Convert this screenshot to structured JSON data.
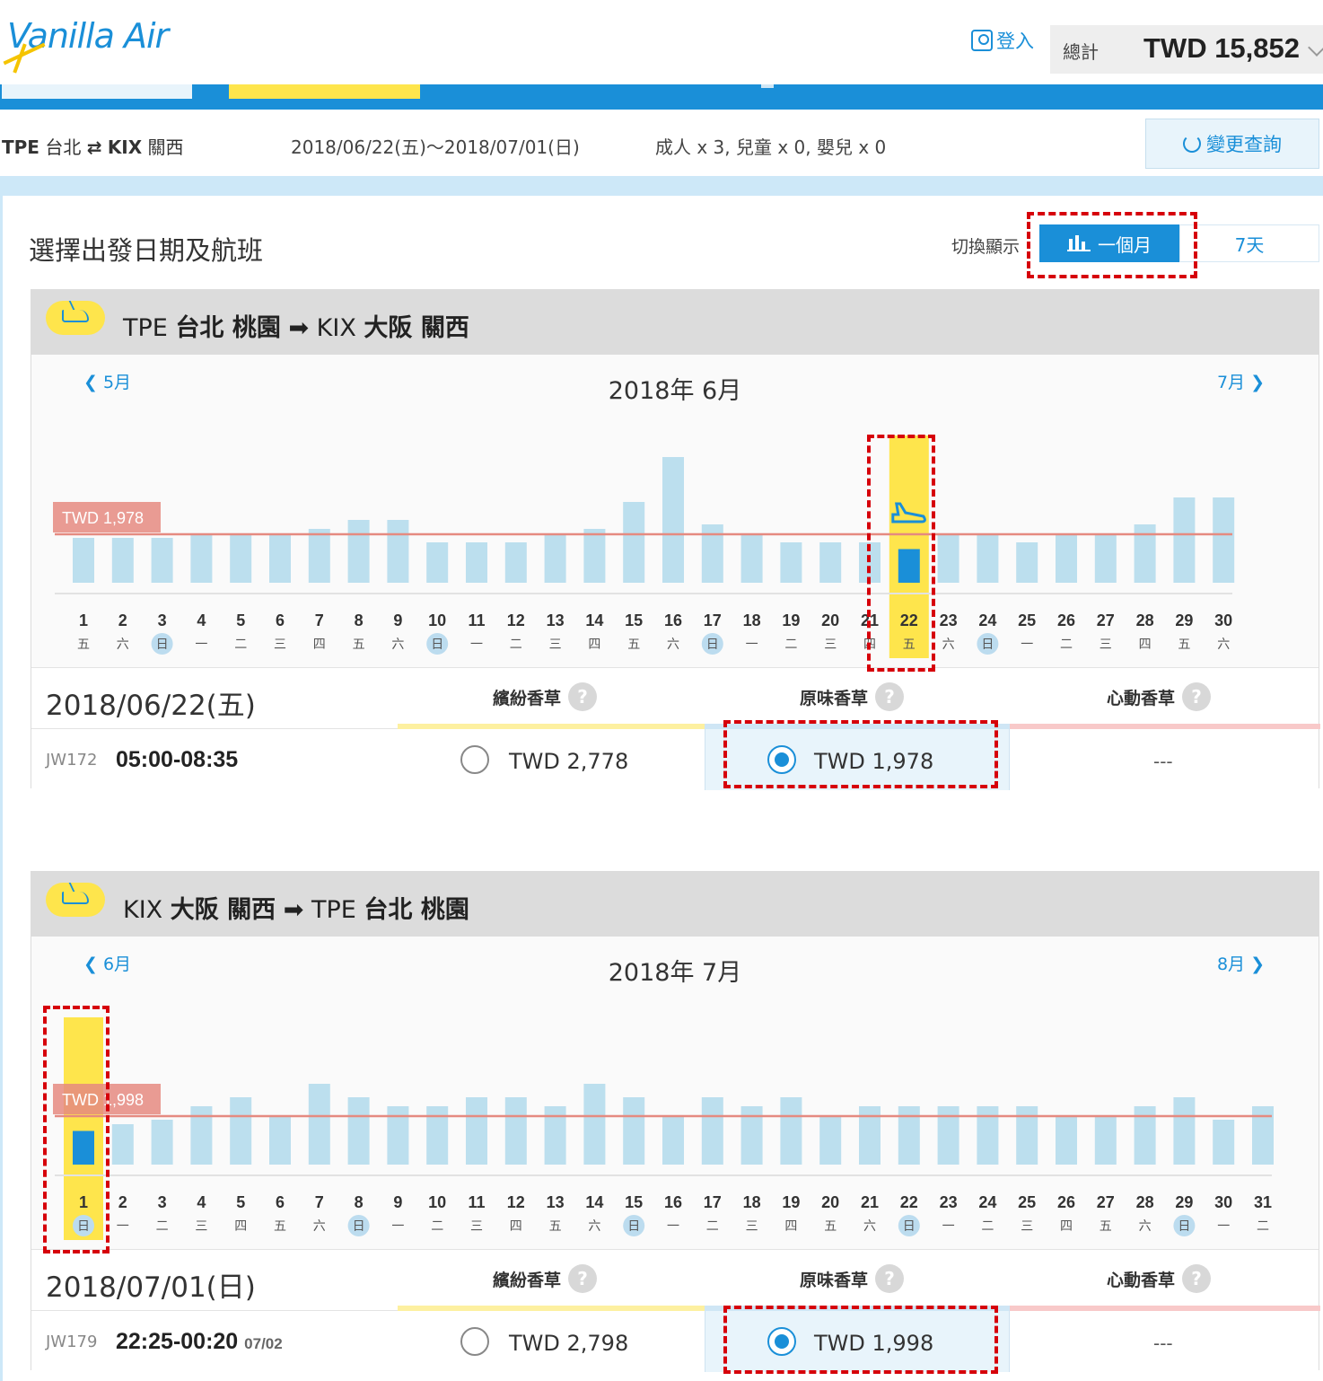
{
  "header": {
    "logo_text": "Vanilla Air",
    "login_label": "登入",
    "total_label": "總計",
    "total_value": "TWD 15,852"
  },
  "summary": {
    "route_from_code": "TPE",
    "route_from_city": "台北",
    "route_to_code": "KIX",
    "route_to_city": "關西",
    "dates": "2018/06/22(五)～2018/07/01(日)",
    "passengers": "成人 x 3, 兒童 x 0, 嬰兒 x 0",
    "change_label": "變更查詢"
  },
  "section": {
    "title": "選擇出發日期及航班",
    "toggle_label": "切換顯示",
    "toggle_month": "一個月",
    "toggle_week": "7天"
  },
  "outbound": {
    "from_code": "TPE",
    "from_name": "台北 桃園",
    "to_code": "KIX",
    "to_name": "大阪 關西",
    "prev_month": "5月",
    "next_month": "7月",
    "month_title": "2018年 6月",
    "ref_price_label": "TWD 1,978",
    "selected_date": "2018/06/22(五)",
    "fare_types": [
      "繽紛香草",
      "原味香草",
      "心動香草"
    ],
    "help_mark": "?",
    "flight_no": "JW172",
    "flight_time": "05:00-08:35",
    "flight_time_note": "",
    "prices": [
      "TWD 2,778",
      "TWD 1,978",
      "---"
    ],
    "selected_fare_index": 1
  },
  "inbound": {
    "from_code": "KIX",
    "from_name": "大阪 關西",
    "to_code": "TPE",
    "to_name": "台北 桃園",
    "prev_month": "6月",
    "next_month": "8月",
    "month_title": "2018年 7月",
    "ref_price_label": "TWD 1,998",
    "selected_date": "2018/07/01(日)",
    "fare_types": [
      "繽紛香草",
      "原味香草",
      "心動香草"
    ],
    "help_mark": "?",
    "flight_no": "JW179",
    "flight_time": "22:25-00:20",
    "flight_time_note": "07/02",
    "prices": [
      "TWD 2,798",
      "TWD 1,998",
      "---"
    ],
    "selected_fare_index": 1
  },
  "chart_data": [
    {
      "type": "bar",
      "title": "2018年 6月",
      "categories": [
        "1",
        "2",
        "3",
        "4",
        "5",
        "6",
        "7",
        "8",
        "9",
        "10",
        "11",
        "12",
        "13",
        "14",
        "15",
        "16",
        "17",
        "18",
        "19",
        "20",
        "21",
        "22",
        "23",
        "24",
        "25",
        "26",
        "27",
        "28",
        "29",
        "30"
      ],
      "weekdays": [
        "五",
        "六",
        "日",
        "一",
        "二",
        "三",
        "四",
        "五",
        "六",
        "日",
        "一",
        "二",
        "三",
        "四",
        "五",
        "六",
        "日",
        "一",
        "二",
        "三",
        "四",
        "五",
        "六",
        "日",
        "一",
        "二",
        "三",
        "四",
        "五",
        "六"
      ],
      "values": [
        1.0,
        1.0,
        1.0,
        1.1,
        1.1,
        1.1,
        1.2,
        1.4,
        1.4,
        0.9,
        0.9,
        0.9,
        1.1,
        1.2,
        1.8,
        2.8,
        1.3,
        1.1,
        0.9,
        0.9,
        0.9,
        1.0,
        1.1,
        1.1,
        0.9,
        1.1,
        1.1,
        1.3,
        1.9,
        1.9
      ],
      "reference_value": 1.0,
      "reference_label": "TWD 1,978",
      "selected_index": 21,
      "sunday_indices": [
        2,
        9,
        16,
        23
      ]
    },
    {
      "type": "bar",
      "title": "2018年 7月",
      "categories": [
        "1",
        "2",
        "3",
        "4",
        "5",
        "6",
        "7",
        "8",
        "9",
        "10",
        "11",
        "12",
        "13",
        "14",
        "15",
        "16",
        "17",
        "18",
        "19",
        "20",
        "21",
        "22",
        "23",
        "24",
        "25",
        "26",
        "27",
        "28",
        "29",
        "30",
        "31"
      ],
      "weekdays": [
        "日",
        "一",
        "二",
        "三",
        "四",
        "五",
        "六",
        "日",
        "一",
        "二",
        "三",
        "四",
        "五",
        "六",
        "日",
        "一",
        "二",
        "三",
        "四",
        "五",
        "六",
        "日",
        "一",
        "二",
        "三",
        "四",
        "五",
        "六",
        "日",
        "一",
        "二"
      ],
      "values": [
        1.0,
        0.9,
        1.0,
        1.3,
        1.5,
        1.1,
        1.8,
        1.5,
        1.3,
        1.3,
        1.5,
        1.5,
        1.3,
        1.8,
        1.5,
        1.1,
        1.5,
        1.3,
        1.5,
        1.1,
        1.3,
        1.3,
        1.3,
        1.3,
        1.3,
        1.1,
        1.1,
        1.3,
        1.5,
        1.0,
        1.3
      ],
      "reference_value": 1.0,
      "reference_label": "TWD 1,998",
      "selected_index": 0,
      "sunday_indices": [
        0,
        7,
        14,
        21,
        28
      ]
    }
  ],
  "colors": {
    "brand_blue": "#1a8fd8",
    "brand_yellow": "#fee54c",
    "bar": "#bcdfee",
    "ref_line": "#e58a80",
    "highlight_dash": "#d6000a",
    "strip_pink": "#f8c9c9"
  }
}
